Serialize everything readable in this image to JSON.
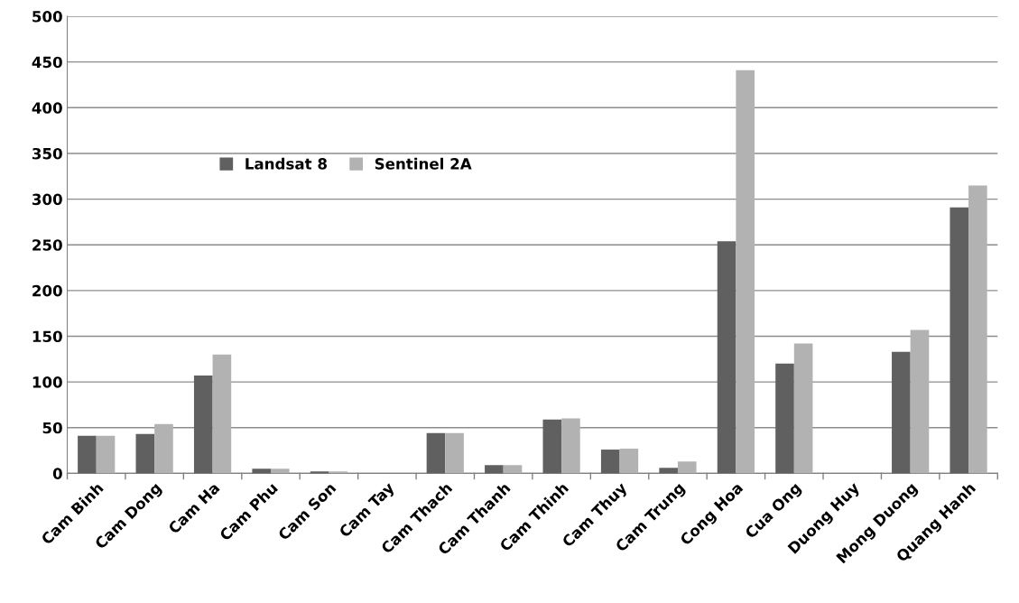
{
  "chart_data": {
    "type": "bar",
    "categories": [
      "Cam Binh",
      "Cam Dong",
      "Cam Ha",
      "Cam Phu",
      "Cam Son",
      "Cam Tay",
      "Cam Thach",
      "Cam Thanh",
      "Cam Thinh",
      "Cam Thuy",
      "Cam Trung",
      "Cong Hoa",
      "Cua Ong",
      "Duong Huy",
      "Mong Duong",
      "Quang Hanh"
    ],
    "series": [
      {
        "name": "Landsat 8",
        "color": "#606060",
        "values": [
          41,
          43,
          107,
          5,
          2,
          0,
          44,
          9,
          59,
          26,
          6,
          254,
          120,
          0,
          133,
          291
        ]
      },
      {
        "name": "Sentinel 2A",
        "color": "#b2b2b2",
        "values": [
          41,
          54,
          130,
          5,
          2,
          0,
          44,
          9,
          60,
          27,
          13,
          441,
          142,
          0,
          157,
          315
        ]
      }
    ],
    "ylim": [
      0,
      500
    ],
    "yticks": [
      0,
      50,
      100,
      150,
      200,
      250,
      300,
      350,
      400,
      450,
      500
    ],
    "grid": "y",
    "legend": "top left"
  }
}
